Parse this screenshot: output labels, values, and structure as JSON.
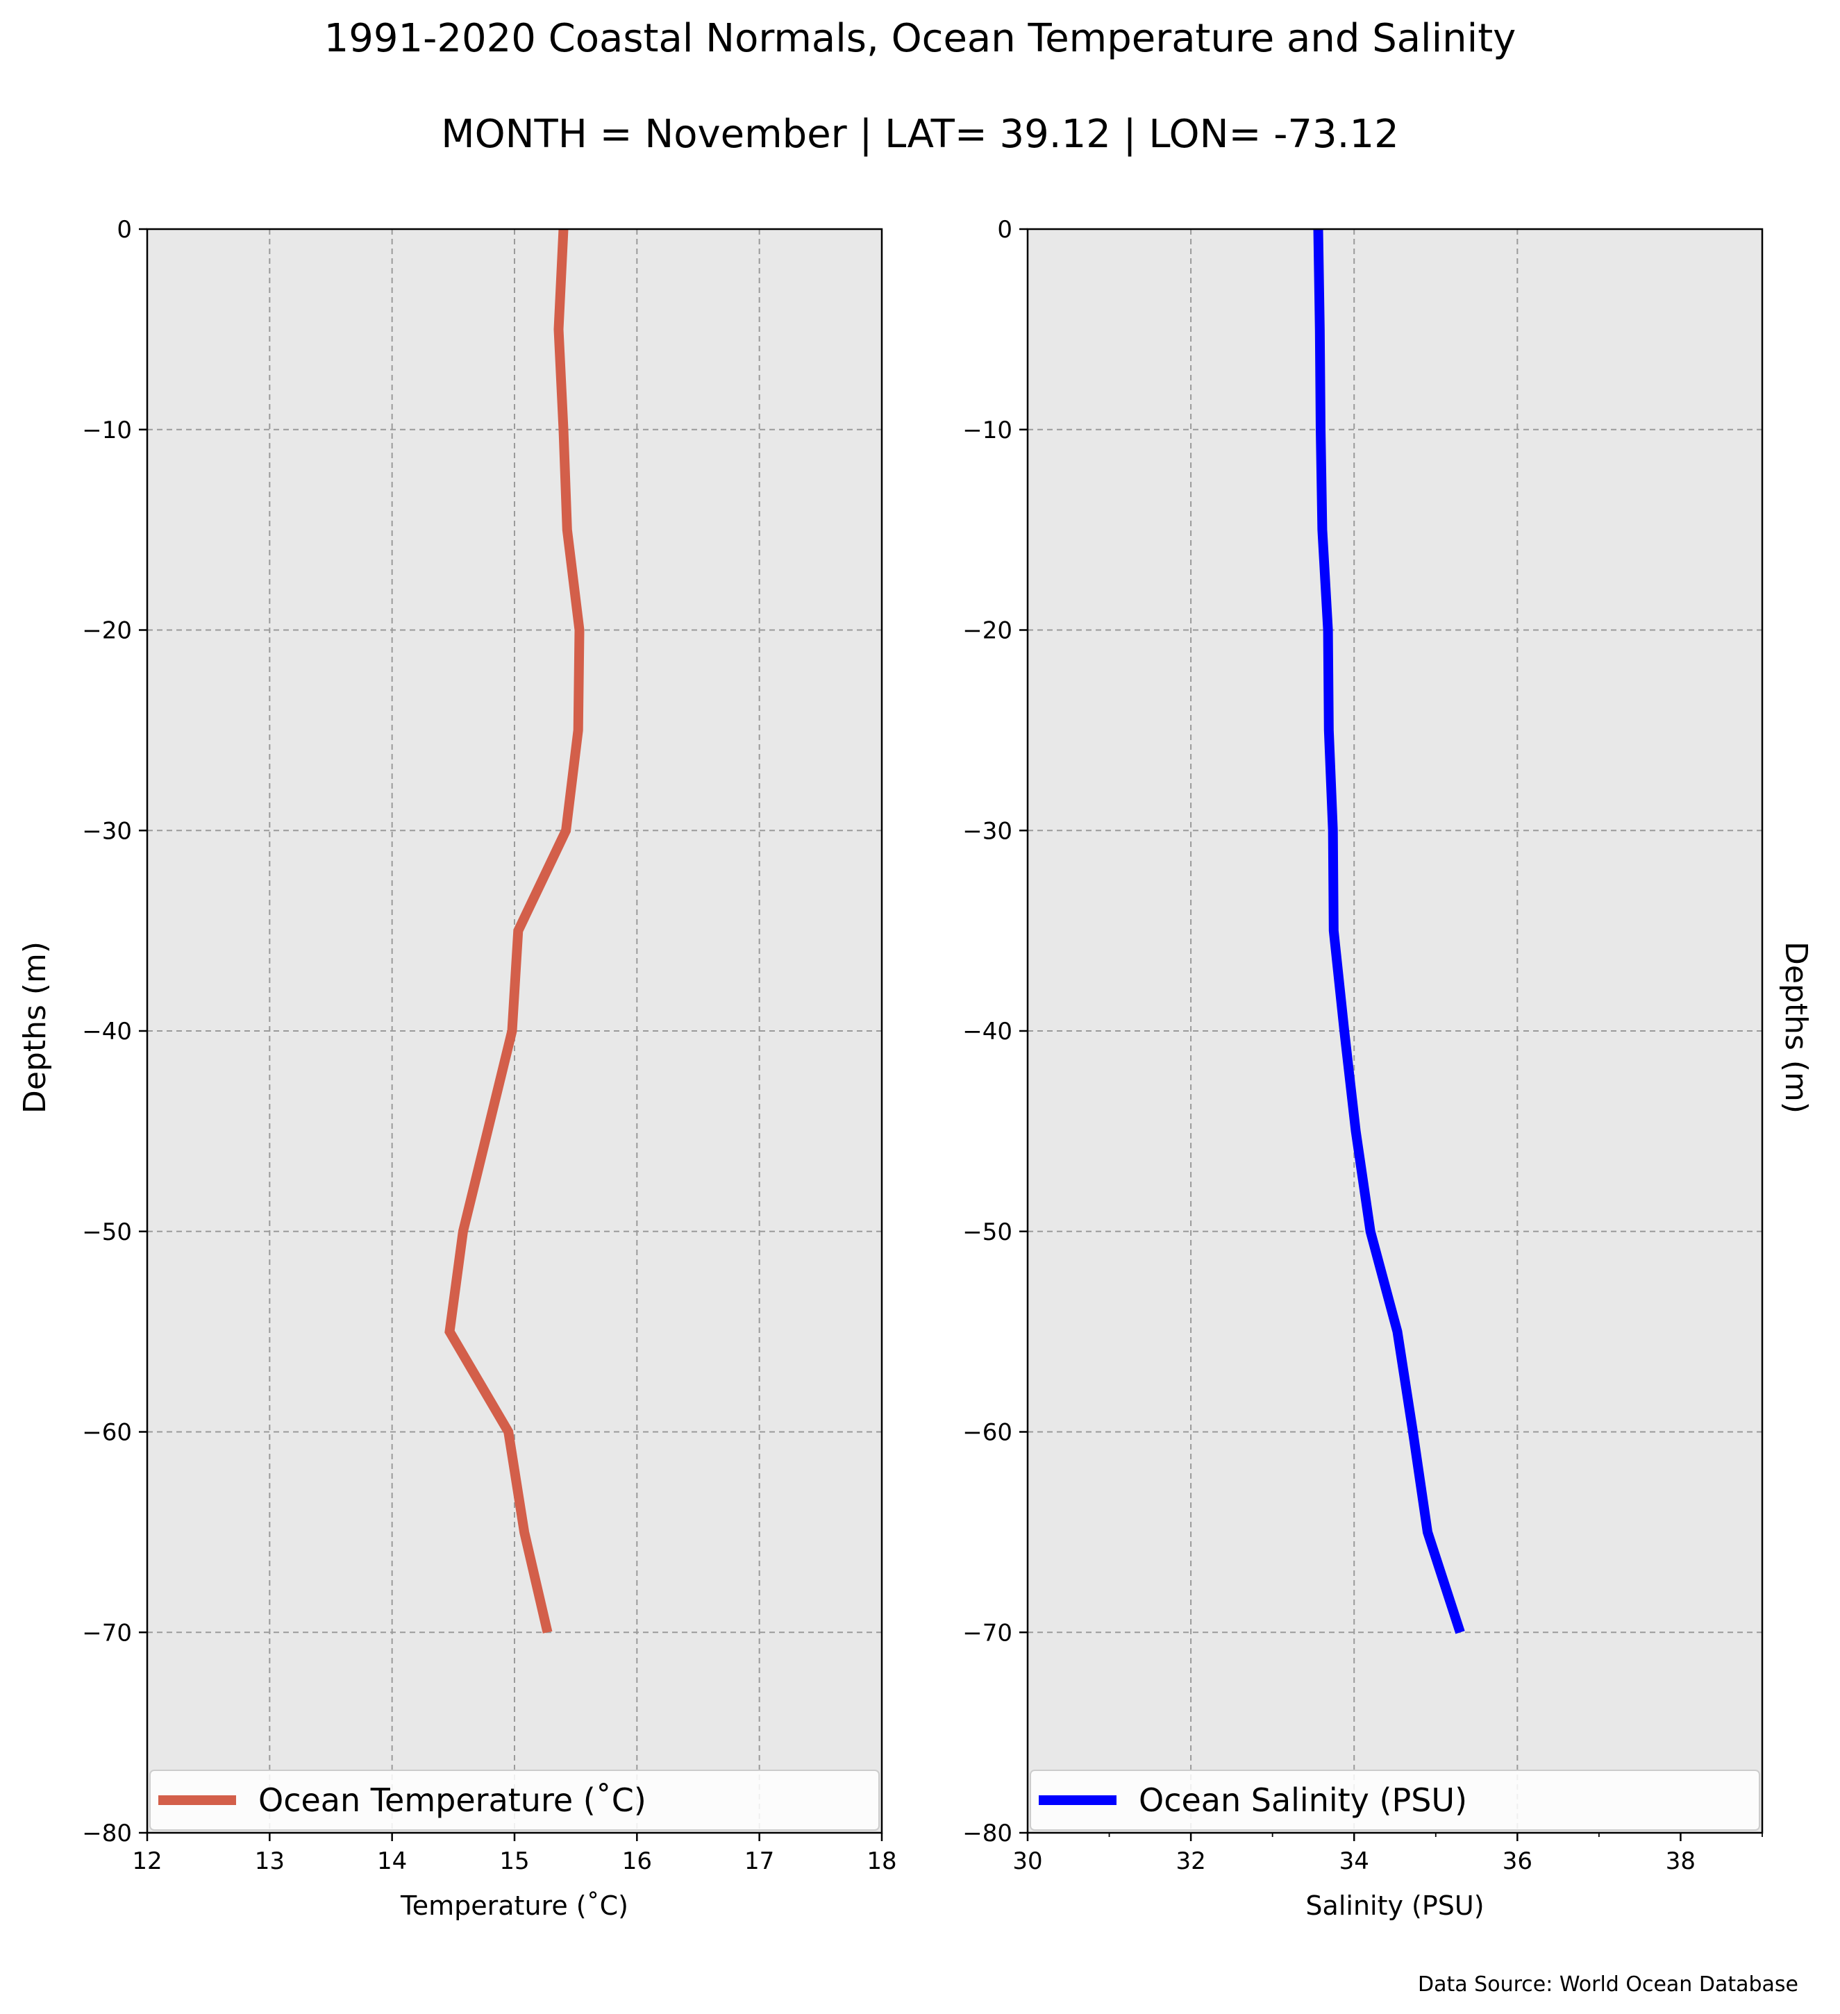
{
  "title_line1": "1991-2020 Coastal Normals, Ocean Temperature and Salinity",
  "title_line2": "MONTH = November | LAT= 39.12 | LON= -73.12",
  "source": "Data Source: World Ocean Database",
  "colors": {
    "temperature": "#d35f4a",
    "salinity": "#0000ff",
    "panel_bg": "#e8e8e8"
  },
  "chart_data": [
    {
      "type": "line",
      "xlabel": "Temperature ($^\\circ$C)",
      "xlabel_display": "Temperature (˚C)",
      "ylabel": "Depths (m)",
      "xlim": [
        12,
        18
      ],
      "ylim": [
        -80,
        0
      ],
      "xticks": [
        "12",
        "13",
        "14",
        "15",
        "16",
        "17",
        "18"
      ],
      "yticks": [
        "0",
        "−10",
        "−20",
        "−30",
        "−40",
        "−50",
        "−60",
        "−70",
        "−80"
      ],
      "grid": true,
      "legend": "bottom",
      "series": [
        {
          "name": "Ocean Temperature (˚C)",
          "x": [
            15.4,
            15.36,
            15.4,
            15.43,
            15.53,
            15.52,
            15.42,
            15.03,
            14.98,
            14.78,
            14.58,
            14.47,
            14.95,
            15.08,
            15.27
          ],
          "y": [
            0,
            -5,
            -10,
            -15,
            -20,
            -25,
            -30,
            -35,
            -40,
            -45,
            -50,
            -55,
            -60,
            -65,
            -70
          ]
        }
      ]
    },
    {
      "type": "line",
      "xlabel": "Salinity (PSU)",
      "ylabel": "Depths (m)",
      "xlim": [
        30,
        39
      ],
      "ylim": [
        -80,
        0
      ],
      "xticks": [
        "30",
        "32",
        "34",
        "36",
        "38"
      ],
      "yticks": [
        "0",
        "−10",
        "−20",
        "−30",
        "−40",
        "−50",
        "−60",
        "−70",
        "−80"
      ],
      "grid": true,
      "legend": "bottom",
      "series": [
        {
          "name": "Ocean Salinity (PSU)",
          "x": [
            33.56,
            33.58,
            33.59,
            33.61,
            33.68,
            33.69,
            33.74,
            33.75,
            33.88,
            34.02,
            34.2,
            34.53,
            34.72,
            34.9,
            35.3
          ],
          "y": [
            0,
            -5,
            -10,
            -15,
            -20,
            -25,
            -30,
            -35,
            -40,
            -45,
            -50,
            -55,
            -60,
            -65,
            -70
          ]
        }
      ]
    }
  ]
}
